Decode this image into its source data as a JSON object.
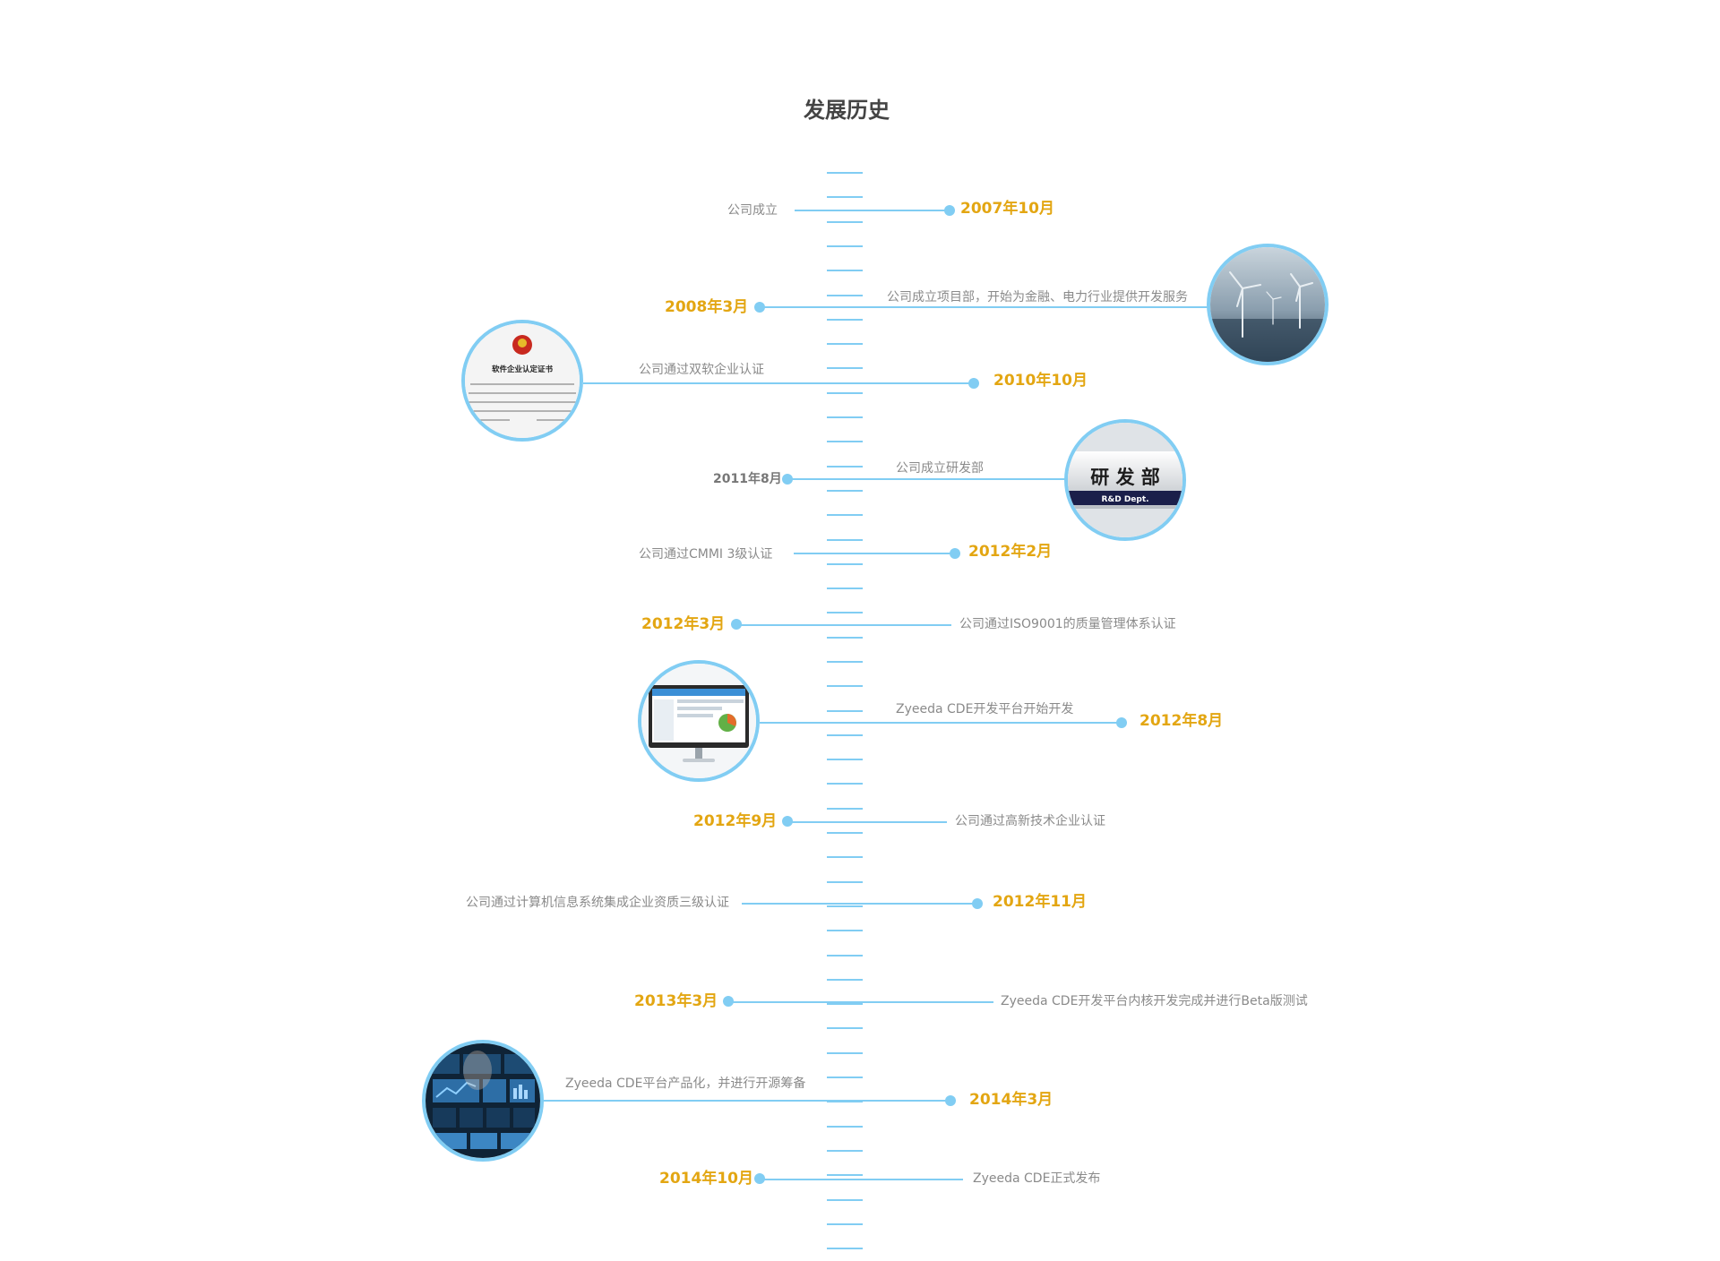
{
  "page": {
    "title": "发展历史"
  },
  "milestones": [
    {
      "date": "2007年10月",
      "desc": "公司成立"
    },
    {
      "date": "2008年3月",
      "desc": "公司成立项目部，开始为金融、电力行业提供开发服务",
      "image": "wind-turbines-image"
    },
    {
      "date": "2010年10月",
      "desc": "公司通过双软企业认证",
      "image": "certificate-image"
    },
    {
      "date": "2011年8月",
      "desc": "公司成立研发部",
      "image": "rd-department-sign-image"
    },
    {
      "date": "2012年2月",
      "desc": "公司通过CMMI 3级认证"
    },
    {
      "date": "2012年3月",
      "desc": "公司通过ISO9001的质量管理体系认证"
    },
    {
      "date": "2012年8月",
      "desc": "Zyeeda CDE开发平台开始开发",
      "image": "monitor-dashboard-image"
    },
    {
      "date": "2012年9月",
      "desc": "公司通过高新技术企业认证"
    },
    {
      "date": "2012年11月",
      "desc": "公司通过计算机信息系统集成企业资质三级认证"
    },
    {
      "date": "2013年3月",
      "desc": "Zyeeda CDE开发平台内核开发完成并进行Beta版测试"
    },
    {
      "date": "2014年3月",
      "desc": "Zyeeda CDE平台产品化，并进行开源筹备",
      "image": "touchscreen-interface-image"
    },
    {
      "date": "2014年10月",
      "desc": "Zyeeda CDE正式发布"
    }
  ],
  "images": {
    "certificate_title": "软件企业认定证书",
    "rd_sign_main": "研 发 部",
    "rd_sign_sub": "R&D Dept."
  },
  "colors": {
    "line": "#81cdf3",
    "date": "#e3a612",
    "desc": "#8a8a8a",
    "title": "#444444"
  }
}
